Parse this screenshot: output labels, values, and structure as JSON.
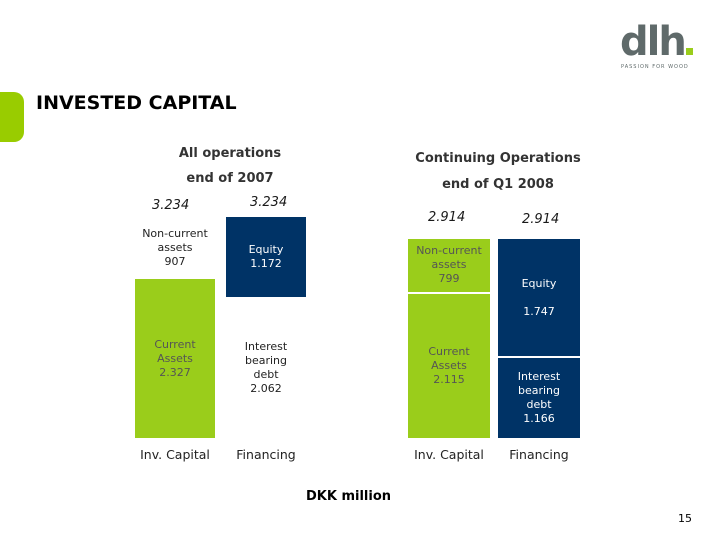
{
  "logo": {
    "word": "dlh",
    "tagline": "PASSION FOR WOOD"
  },
  "slide": {
    "title": "INVESTED CAPITAL",
    "unit_label": "DKK million",
    "page_number": "15"
  },
  "colors": {
    "current": "#9acd1b",
    "noncurrent_all": "#ffffff",
    "noncurrent_cont": "#9acd1b",
    "equity": "#003366",
    "debt_all": "#ffffff",
    "debt_cont": "#003366",
    "accent": "#99cc00"
  },
  "chart_data": [
    {
      "type": "bar",
      "stacked": true,
      "title": "All operations",
      "subtitle": "end of 2007",
      "categories": [
        "Inv. Capital",
        "Financing"
      ],
      "totals": [
        "3.234",
        "3.234"
      ],
      "total_values": [
        3234,
        3234
      ],
      "series": [
        {
          "column": "Inv. Capital",
          "segments": [
            {
              "name": "Current Assets",
              "label": "Current\nAssets\n2.327",
              "value": 2327,
              "color": "#9acd1b"
            },
            {
              "name": "Non-current assets",
              "label": "Non-current\nassets\n907",
              "value": 907,
              "color": "#ffffff"
            }
          ]
        },
        {
          "column": "Financing",
          "segments": [
            {
              "name": "Interest bearing debt",
              "label": "Interest\nbearing\ndebt\n2.062",
              "value": 2062,
              "color": "#ffffff"
            },
            {
              "name": "Equity",
              "label": "Equity\n1.172",
              "value": 1172,
              "color": "#003366"
            }
          ]
        }
      ]
    },
    {
      "type": "bar",
      "stacked": true,
      "title": "Continuing Operations",
      "subtitle": "end of Q1 2008",
      "categories": [
        "Inv. Capital",
        "Financing"
      ],
      "totals": [
        "2.914",
        "2.914"
      ],
      "total_values": [
        2914,
        2914
      ],
      "series": [
        {
          "column": "Inv. Capital",
          "segments": [
            {
              "name": "Current Assets",
              "label": "Current\nAssets\n2.115",
              "value": 2115,
              "color": "#9acd1b"
            },
            {
              "name": "Non-current assets",
              "label": "Non-current\nassets\n799",
              "value": 799,
              "color": "#9acd1b"
            }
          ]
        },
        {
          "column": "Financing",
          "segments": [
            {
              "name": "Interest bearing debt",
              "label": "Interest\nbearing\ndebt\n1.166",
              "value": 1166,
              "color": "#003366"
            },
            {
              "name": "Equity",
              "label": "Equity\n\n1.747",
              "value": 1747,
              "color": "#003366"
            }
          ]
        }
      ]
    }
  ]
}
